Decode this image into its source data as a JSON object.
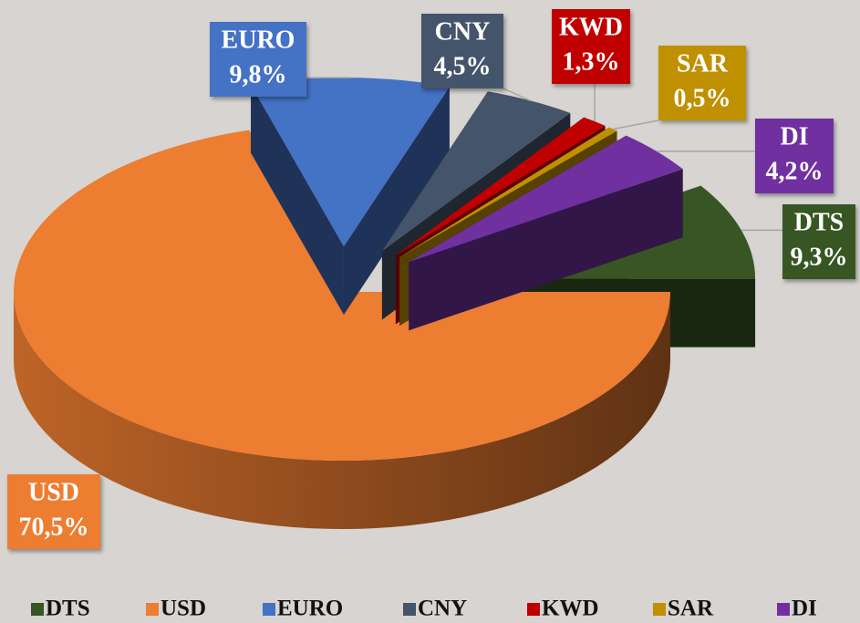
{
  "chart_data": {
    "type": "pie3d",
    "categories": [
      "DTS",
      "USD",
      "EURO",
      "CNY",
      "KWD",
      "SAR",
      "DI"
    ],
    "values": [
      9.3,
      70.5,
      9.8,
      4.5,
      1.3,
      0.5,
      4.2
    ],
    "value_labels": [
      "9,3%",
      "70,5%",
      "9,8%",
      "4,5%",
      "1,3%",
      "0,5%",
      "4,2%"
    ],
    "colors": [
      "#375623",
      "#ed7d31",
      "#4472c4",
      "#44546a",
      "#c00000",
      "#bf9000",
      "#7030a0"
    ],
    "legend": "bottom"
  }
}
